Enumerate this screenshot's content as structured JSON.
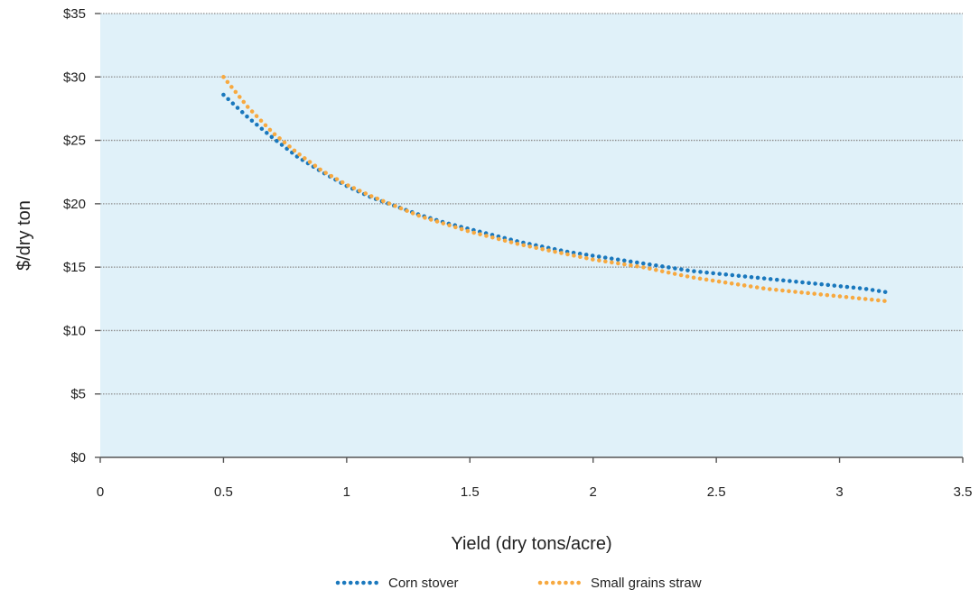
{
  "chart_data": {
    "type": "line",
    "title": "",
    "xlabel": "Yield (dry tons/acre)",
    "ylabel": "$/dry ton",
    "xlim": [
      0,
      3.5
    ],
    "ylim": [
      0,
      35
    ],
    "x_ticks": [
      0,
      0.5,
      1,
      1.5,
      2,
      2.5,
      3,
      3.5
    ],
    "x_tick_labels": [
      "0",
      "0.5",
      "1",
      "1.5",
      "2",
      "2.5",
      "3",
      "3.5"
    ],
    "y_ticks": [
      0,
      5,
      10,
      15,
      20,
      25,
      30,
      35
    ],
    "y_tick_labels": [
      "$0",
      "$5",
      "$10",
      "$15",
      "$20",
      "$25",
      "$30",
      "$35"
    ],
    "grid": "horizontal dotted",
    "legend_position": "bottom-center",
    "plot_background": "#e0f1f9",
    "series": [
      {
        "name": "Corn stover",
        "color": "#1a78bd",
        "style": "dotted",
        "x": [
          0.5,
          0.6,
          0.7,
          0.8,
          0.9,
          1.0,
          1.1,
          1.2,
          1.3,
          1.4,
          1.5,
          1.6,
          1.7,
          1.8,
          1.9,
          2.0,
          2.1,
          2.2,
          2.3,
          2.4,
          2.5,
          2.6,
          2.7,
          2.8,
          2.9,
          3.0,
          3.1,
          3.2
        ],
        "y": [
          28.6,
          26.8,
          25.2,
          23.7,
          22.5,
          21.4,
          20.5,
          19.8,
          19.1,
          18.5,
          18.0,
          17.5,
          17.0,
          16.6,
          16.2,
          15.9,
          15.6,
          15.3,
          15.0,
          14.7,
          14.5,
          14.3,
          14.1,
          13.9,
          13.7,
          13.5,
          13.3,
          13.0
        ]
      },
      {
        "name": "Small grains straw",
        "color": "#f7a940",
        "style": "dotted",
        "x": [
          0.5,
          0.6,
          0.7,
          0.8,
          0.9,
          1.0,
          1.1,
          1.2,
          1.3,
          1.4,
          1.5,
          1.6,
          1.7,
          1.8,
          1.9,
          2.0,
          2.1,
          2.2,
          2.3,
          2.4,
          2.5,
          2.6,
          2.7,
          2.8,
          2.9,
          3.0,
          3.1,
          3.2
        ],
        "y": [
          30.0,
          27.6,
          25.6,
          24.0,
          22.6,
          21.5,
          20.6,
          19.8,
          19.0,
          18.4,
          17.8,
          17.3,
          16.8,
          16.4,
          16.0,
          15.6,
          15.3,
          15.0,
          14.6,
          14.2,
          13.9,
          13.6,
          13.3,
          13.1,
          12.9,
          12.7,
          12.5,
          12.3
        ]
      }
    ]
  }
}
